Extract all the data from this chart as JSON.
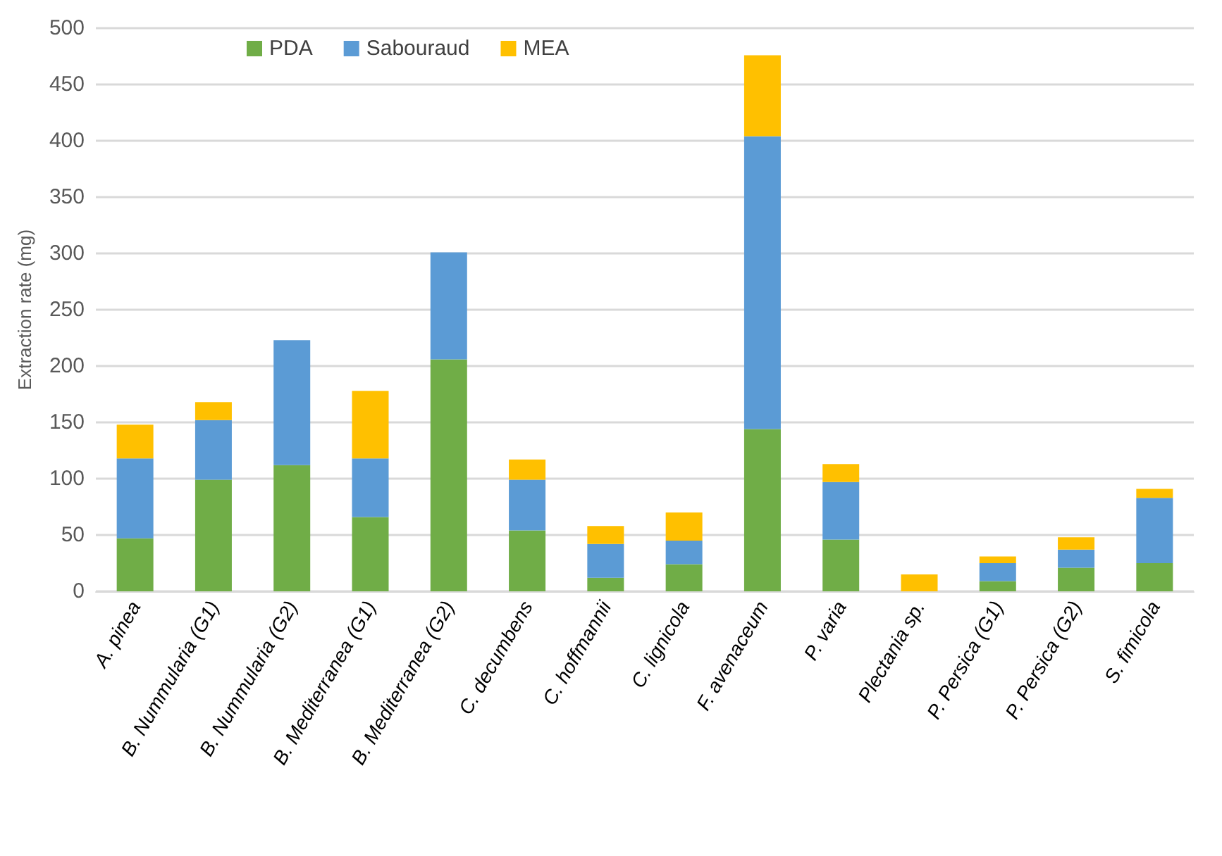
{
  "chart_data": {
    "type": "bar",
    "stacked": true,
    "ylabel": "Extraction rate (mg)",
    "categories": [
      "A. pinea",
      "B. Nummularia (G1)",
      "B. Nummularia (G2)",
      "B. Mediterranea (G1)",
      "B. Mediterranea (G2)",
      "C. decumbens",
      "C. hoffmannii",
      "C. lignicola",
      "F. avenaceum",
      "P. varia",
      "Plectania sp.",
      "P. Persica (G1)",
      "P. Persica (G2)",
      "S. fimicola"
    ],
    "series": [
      {
        "name": "PDA",
        "color": "#70ad47",
        "values": [
          47,
          99,
          112,
          66,
          206,
          54,
          12,
          24,
          144,
          46,
          0,
          9,
          21,
          25
        ]
      },
      {
        "name": "Sabouraud",
        "color": "#5b9bd5",
        "values": [
          71,
          53,
          111,
          52,
          95,
          45,
          30,
          21,
          260,
          51,
          0,
          16,
          16,
          58
        ]
      },
      {
        "name": "MEA",
        "color": "#ffc000",
        "values": [
          30,
          16,
          0,
          60,
          0,
          18,
          16,
          25,
          72,
          16,
          15,
          6,
          11,
          8
        ]
      }
    ],
    "ylim": [
      0,
      500
    ],
    "yticks": [
      0,
      50,
      100,
      150,
      200,
      250,
      300,
      350,
      400,
      450,
      500
    ],
    "grid": "y",
    "legend": "top left"
  }
}
